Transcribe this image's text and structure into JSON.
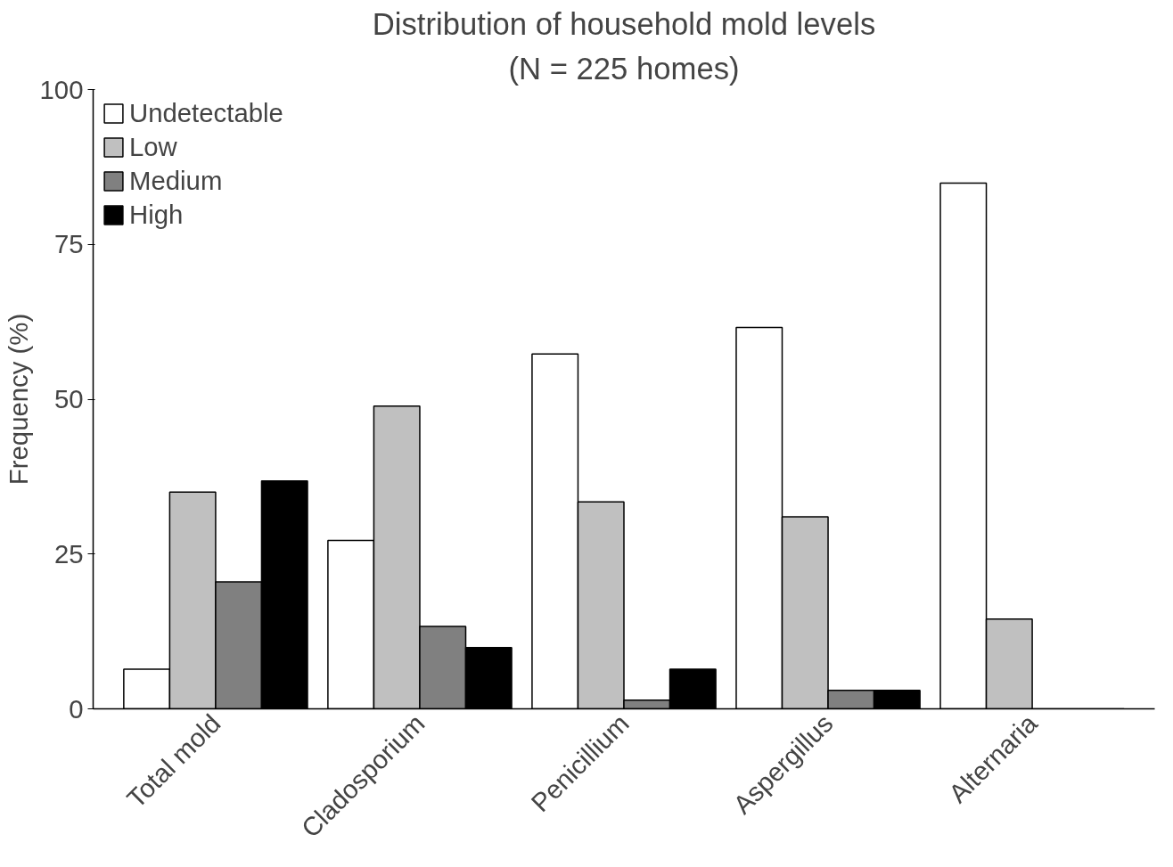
{
  "chart_data": {
    "type": "bar",
    "title": "Distribution of household mold levels",
    "subtitle": "(N = 225 homes)",
    "ylabel": "Frequency (%)",
    "categories": [
      "Total mold",
      "Cladosporium",
      "Penicillium",
      "Aspergillus",
      "Alternaria"
    ],
    "series": [
      {
        "name": "Undetectable",
        "color": "#ffffff",
        "values": [
          6.4,
          27.2,
          57.3,
          61.6,
          84.9
        ]
      },
      {
        "name": "Low",
        "color": "#c0c0c0",
        "values": [
          35,
          48.9,
          33.4,
          31,
          14.5
        ]
      },
      {
        "name": "Medium",
        "color": "#808080",
        "values": [
          20.5,
          13.3,
          1.4,
          3,
          0
        ]
      },
      {
        "name": "High",
        "color": "#000000",
        "values": [
          36.8,
          9.9,
          6.4,
          3,
          0
        ]
      }
    ],
    "ylim": [
      0,
      100
    ],
    "yticks": [
      0,
      25,
      50,
      75,
      100
    ],
    "grid": false,
    "legend": "top left"
  }
}
